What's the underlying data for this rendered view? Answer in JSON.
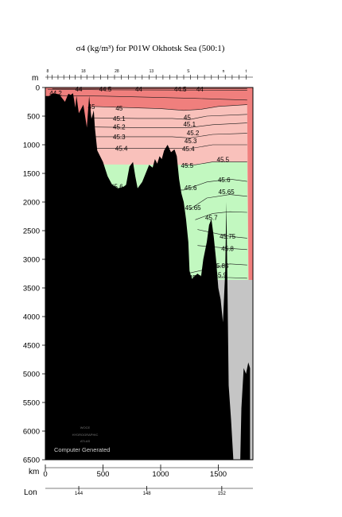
{
  "chart_data": {
    "type": "contour",
    "title": "σ4 (kg/m³) for P01W Okhotsk Sea (500:1)",
    "depth_axis": {
      "unit_label": "m",
      "range": [
        0,
        6500
      ],
      "ticks": [
        0,
        500,
        1000,
        1500,
        2000,
        2500,
        3000,
        3500,
        4000,
        4500,
        5000,
        5500,
        6000,
        6500
      ]
    },
    "distance_axis": {
      "unit_label": "km",
      "range": [
        0,
        1800
      ],
      "ticks": [
        0,
        500,
        1000,
        1500
      ]
    },
    "longitude_axis": {
      "label": "Lon",
      "ticks": [
        {
          "label": "144",
          "km": 290
        },
        {
          "label": "148",
          "km": 880
        },
        {
          "label": "152",
          "km": 1530
        }
      ]
    },
    "station_labels": [
      {
        "label": "8",
        "km": 20
      },
      {
        "label": "18",
        "km": 330
      },
      {
        "label": "28",
        "km": 620
      },
      {
        "label": "13",
        "km": 920
      },
      {
        "label": "S",
        "km": 1240
      },
      {
        "label": "n",
        "km": 1545
      },
      {
        "label": "t",
        "km": 1740
      }
    ],
    "station_km": [
      20,
      60,
      110,
      160,
      210,
      260,
      310,
      360,
      420,
      480,
      540,
      600,
      660,
      720,
      780,
      840,
      900,
      960,
      1020,
      1080,
      1140,
      1200,
      1260,
      1320,
      1380,
      1440,
      1500,
      1560,
      1620,
      1680,
      1740
    ],
    "color_bands": [
      {
        "from": 44.5,
        "to": 45.0,
        "color": "#f07f7d"
      },
      {
        "from": 45.0,
        "to": 45.5,
        "color": "#f9c1bb"
      },
      {
        "from": 45.5,
        "to": 45.8,
        "color": "#c2f8c0"
      },
      {
        "from": 45.8,
        "to": 46.0,
        "color": "#c5c5c5"
      }
    ],
    "contours": [
      {
        "value": 44.4,
        "label": "44.4",
        "points": [
          [
            60,
            18
          ],
          [
            1750,
            18
          ]
        ]
      },
      {
        "value": 44.5,
        "label": "44.5",
        "points": [
          [
            20,
            30
          ],
          [
            600,
            40
          ],
          [
            1100,
            45
          ],
          [
            1300,
            45
          ],
          [
            1750,
            50
          ]
        ]
      },
      {
        "value": 44.8,
        "label": "44.8",
        "points": [
          [
            60,
            140
          ],
          [
            500,
            150
          ],
          [
            1000,
            175
          ],
          [
            1300,
            190
          ],
          [
            1750,
            220
          ]
        ]
      },
      {
        "value": 45.0,
        "label": "45",
        "points": [
          [
            400,
            330
          ],
          [
            700,
            350
          ],
          [
            1000,
            370
          ],
          [
            1200,
            400
          ],
          [
            1350,
            380
          ],
          [
            1500,
            330
          ],
          [
            1750,
            300
          ]
        ]
      },
      {
        "value": 45.1,
        "label": "45.1",
        "points": [
          [
            400,
            530
          ],
          [
            800,
            540
          ],
          [
            1100,
            540
          ],
          [
            1250,
            560
          ],
          [
            1400,
            500
          ],
          [
            1750,
            470
          ]
        ]
      },
      {
        "value": 45.2,
        "label": "45.2",
        "points": [
          [
            400,
            690
          ],
          [
            800,
            700
          ],
          [
            1100,
            700
          ],
          [
            1250,
            700
          ],
          [
            1450,
            650
          ],
          [
            1750,
            620
          ]
        ]
      },
      {
        "value": 45.3,
        "label": "45.3",
        "points": [
          [
            400,
            860
          ],
          [
            800,
            860
          ],
          [
            1100,
            860
          ],
          [
            1250,
            880
          ],
          [
            1450,
            820
          ],
          [
            1750,
            800
          ]
        ]
      },
      {
        "value": 45.4,
        "label": "45.4",
        "points": [
          [
            400,
            1060
          ],
          [
            800,
            1060
          ],
          [
            1100,
            1060
          ],
          [
            1250,
            1070
          ],
          [
            1450,
            1000
          ],
          [
            1750,
            1000
          ]
        ]
      },
      {
        "value": 45.5,
        "label": "45.5",
        "points": [
          [
            1200,
            1350
          ],
          [
            1300,
            1350
          ],
          [
            1450,
            1300
          ],
          [
            1750,
            1300
          ]
        ]
      },
      {
        "value": 45.6,
        "label": "45.6",
        "points": [
          [
            550,
            1760
          ],
          [
            700,
            1790
          ],
          [
            1200,
            1790
          ],
          [
            1400,
            1650
          ],
          [
            1600,
            1600
          ],
          [
            1750,
            1640
          ]
        ]
      },
      {
        "value": 45.65,
        "label": "45.65",
        "points": [
          [
            1250,
            2130
          ],
          [
            1400,
            1930
          ],
          [
            1600,
            1870
          ],
          [
            1750,
            1900
          ]
        ]
      },
      {
        "value": 45.7,
        "label": "45.7",
        "points": [
          [
            1300,
            2310
          ],
          [
            1450,
            2200
          ],
          [
            1600,
            2170
          ],
          [
            1750,
            2180
          ]
        ]
      },
      {
        "value": 45.75,
        "label": "45.75",
        "points": [
          [
            1320,
            2480
          ],
          [
            1600,
            2600
          ],
          [
            1750,
            2630
          ]
        ]
      },
      {
        "value": 45.8,
        "label": "45.8",
        "points": [
          [
            1320,
            2760
          ],
          [
            1600,
            2810
          ],
          [
            1750,
            2830
          ]
        ]
      },
      {
        "value": 45.85,
        "label": "45.85",
        "points": [
          [
            1250,
            3240
          ],
          [
            1600,
            3080
          ],
          [
            1750,
            3100
          ]
        ]
      },
      {
        "value": 45.9,
        "label": "45.9",
        "points": [
          [
            1300,
            3320
          ],
          [
            1600,
            3320
          ],
          [
            1750,
            3330
          ]
        ]
      }
    ],
    "contour_labels": [
      {
        "text": "44.2",
        "km": 90,
        "depth": 100
      },
      {
        "text": "44",
        "km": 290,
        "depth": 30
      },
      {
        "text": "44.5",
        "km": 520,
        "depth": 30
      },
      {
        "text": "44",
        "km": 810,
        "depth": 30
      },
      {
        "text": "44.5",
        "km": 1170,
        "depth": 30
      },
      {
        "text": "44",
        "km": 1340,
        "depth": 30
      },
      {
        "text": "45",
        "km": 400,
        "depth": 330
      },
      {
        "text": "45",
        "km": 640,
        "depth": 360
      },
      {
        "text": "45.1",
        "km": 640,
        "depth": 540
      },
      {
        "text": "45.2",
        "km": 640,
        "depth": 690
      },
      {
        "text": "45.3",
        "km": 640,
        "depth": 860
      },
      {
        "text": "45.4",
        "km": 660,
        "depth": 1060
      },
      {
        "text": "45",
        "km": 1230,
        "depth": 520
      },
      {
        "text": "45.1",
        "km": 1250,
        "depth": 640
      },
      {
        "text": "45.2",
        "km": 1280,
        "depth": 790
      },
      {
        "text": "45.3",
        "km": 1260,
        "depth": 930
      },
      {
        "text": "45.4",
        "km": 1240,
        "depth": 1070
      },
      {
        "text": "45.5",
        "km": 1540,
        "depth": 1260
      },
      {
        "text": "45.5",
        "km": 1230,
        "depth": 1360
      },
      {
        "text": "45.6",
        "km": 1550,
        "depth": 1610
      },
      {
        "text": "45.6",
        "km": 620,
        "depth": 1730
      },
      {
        "text": "45.6",
        "km": 1260,
        "depth": 1750
      },
      {
        "text": "45.65",
        "km": 1570,
        "depth": 1820
      },
      {
        "text": "45.65",
        "km": 1280,
        "depth": 2100
      },
      {
        "text": "45.7",
        "km": 1440,
        "depth": 2270
      },
      {
        "text": "45.75",
        "km": 1580,
        "depth": 2600
      },
      {
        "text": "45.8",
        "km": 1580,
        "depth": 2810
      },
      {
        "text": "45.85",
        "km": 1520,
        "depth": 3110
      },
      {
        "text": "45.9",
        "km": 1520,
        "depth": 3270
      },
      {
        "text": "45.9",
        "km": 1300,
        "depth": 3320
      }
    ],
    "bottom_profile": [
      [
        0,
        6500
      ],
      [
        0,
        150
      ],
      [
        30,
        150
      ],
      [
        70,
        100
      ],
      [
        120,
        120
      ],
      [
        170,
        250
      ],
      [
        200,
        110
      ],
      [
        220,
        130
      ],
      [
        240,
        100
      ],
      [
        260,
        350
      ],
      [
        270,
        150
      ],
      [
        290,
        450
      ],
      [
        330,
        300
      ],
      [
        360,
        700
      ],
      [
        380,
        150
      ],
      [
        400,
        550
      ],
      [
        420,
        400
      ],
      [
        430,
        700
      ],
      [
        450,
        1100
      ],
      [
        500,
        1300
      ],
      [
        540,
        1550
      ],
      [
        580,
        1700
      ],
      [
        630,
        1760
      ],
      [
        680,
        1730
      ],
      [
        700,
        1700
      ],
      [
        730,
        1380
      ],
      [
        760,
        1300
      ],
      [
        780,
        1550
      ],
      [
        800,
        1760
      ],
      [
        840,
        1650
      ],
      [
        880,
        1450
      ],
      [
        900,
        1350
      ],
      [
        930,
        1400
      ],
      [
        950,
        1250
      ],
      [
        970,
        1330
      ],
      [
        990,
        1200
      ],
      [
        1010,
        1250
      ],
      [
        1030,
        1100
      ],
      [
        1060,
        1000
      ],
      [
        1090,
        1130
      ],
      [
        1120,
        1080
      ],
      [
        1140,
        1200
      ],
      [
        1160,
        1600
      ],
      [
        1180,
        1850
      ],
      [
        1200,
        2000
      ],
      [
        1220,
        2300
      ],
      [
        1240,
        2700
      ],
      [
        1250,
        3200
      ],
      [
        1270,
        3350
      ],
      [
        1290,
        3300
      ],
      [
        1320,
        3250
      ],
      [
        1350,
        3300
      ],
      [
        1370,
        3000
      ],
      [
        1400,
        2700
      ],
      [
        1420,
        2400
      ],
      [
        1440,
        2300
      ],
      [
        1460,
        2600
      ],
      [
        1480,
        3000
      ],
      [
        1500,
        3500
      ],
      [
        1520,
        3700
      ],
      [
        1540,
        4100
      ],
      [
        1560,
        3200
      ],
      [
        1570,
        2000
      ],
      [
        1580,
        3600
      ],
      [
        1590,
        5200
      ],
      [
        1610,
        5800
      ],
      [
        1630,
        6500
      ],
      [
        1690,
        6500
      ],
      [
        1700,
        5600
      ],
      [
        1720,
        4900
      ],
      [
        1740,
        5000
      ],
      [
        1760,
        4800
      ],
      [
        1775,
        4900
      ],
      [
        1775,
        6500
      ]
    ],
    "grey_region_km": 1775,
    "footer_text": "Computer Generated",
    "logo_text": [
      "WOCE",
      "HYDROGRAPHIC",
      "ATLAS"
    ]
  }
}
